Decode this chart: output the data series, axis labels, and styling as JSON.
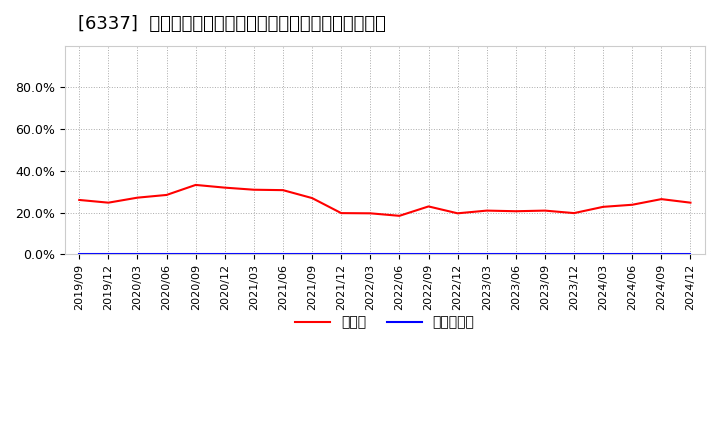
{
  "title": "[6337]  現預金、有利子負債の総資産に対する比率の推移",
  "x_labels": [
    "2019/09",
    "2019/12",
    "2020/03",
    "2020/06",
    "2020/09",
    "2020/12",
    "2021/03",
    "2021/06",
    "2021/09",
    "2021/12",
    "2022/03",
    "2022/06",
    "2022/09",
    "2022/12",
    "2023/03",
    "2023/06",
    "2023/09",
    "2023/12",
    "2024/03",
    "2024/06",
    "2024/09",
    "2024/12"
  ],
  "cash_ratio": [
    0.261,
    0.248,
    0.272,
    0.285,
    0.333,
    0.32,
    0.31,
    0.308,
    0.27,
    0.198,
    0.197,
    0.185,
    0.23,
    0.197,
    0.21,
    0.207,
    0.21,
    0.198,
    0.228,
    0.238,
    0.265,
    0.248
  ],
  "debt_ratio": [
    0.0,
    0.0,
    0.0,
    0.0,
    0.0,
    0.0,
    0.0,
    0.0,
    0.0,
    0.0,
    0.0,
    0.0,
    0.0,
    0.0,
    0.0,
    0.0,
    0.0,
    0.0,
    0.0,
    0.0,
    0.0,
    0.0
  ],
  "cash_color": "#ff0000",
  "debt_color": "#0000ff",
  "grid_color": "#aaaaaa",
  "bg_color": "#ffffff",
  "plot_bg_color": "#ffffff",
  "ylim": [
    0.0,
    1.0
  ],
  "yticks": [
    0.0,
    0.2,
    0.4,
    0.6,
    0.8
  ],
  "legend_cash": "現預金",
  "legend_debt": "有利子負債",
  "title_fontsize": 13,
  "label_fontsize": 8,
  "legend_fontsize": 10
}
